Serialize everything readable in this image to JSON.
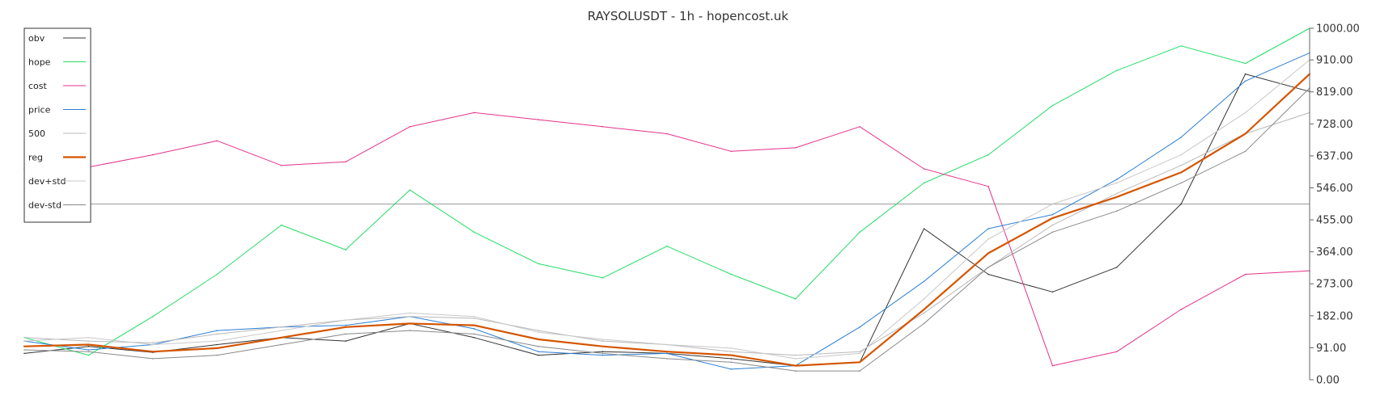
{
  "chart_data": {
    "type": "line",
    "title": "RAYSOLUSDT - 1h - hopencost.uk",
    "xlabel": "",
    "ylabel": "",
    "ylim": [
      0,
      1000
    ],
    "y_ticks": [
      "1000.00",
      "910.00",
      "819.00",
      "728.00",
      "637.00",
      "546.00",
      "455.00",
      "364.00",
      "273.00",
      "182.00",
      "91.00",
      "0.00"
    ],
    "y_tick_values": [
      1000,
      910,
      819,
      728,
      637,
      546,
      455,
      364,
      273,
      182,
      91,
      0
    ],
    "grid": false,
    "legend_position": "top-left",
    "reference_line": 500,
    "x": [
      0,
      20,
      40,
      60,
      80,
      100,
      120,
      140,
      160,
      180,
      200,
      220,
      240,
      260,
      280,
      300,
      320,
      340,
      360,
      380,
      400
    ],
    "series": [
      {
        "name": "obv",
        "color": "#333333",
        "width": 1,
        "values": [
          75,
          95,
          78,
          100,
          120,
          110,
          160,
          120,
          70,
          80,
          75,
          60,
          40,
          50,
          430,
          300,
          250,
          320,
          500,
          870,
          820
        ]
      },
      {
        "name": "hope",
        "color": "#22dd66",
        "width": 1,
        "values": [
          120,
          70,
          180,
          300,
          440,
          370,
          540,
          420,
          330,
          290,
          380,
          300,
          230,
          420,
          560,
          640,
          780,
          880,
          950,
          900,
          1000
        ]
      },
      {
        "name": "cost",
        "color": "#e3318a",
        "width": 1,
        "values": [
          600,
          605,
          640,
          680,
          610,
          620,
          720,
          760,
          740,
          720,
          700,
          650,
          660,
          720,
          600,
          550,
          40,
          80,
          200,
          300,
          310
        ]
      },
      {
        "name": "price",
        "color": "#2b7fd6",
        "width": 1,
        "values": [
          110,
          85,
          100,
          140,
          150,
          155,
          180,
          145,
          80,
          70,
          75,
          30,
          40,
          150,
          280,
          430,
          470,
          570,
          690,
          850,
          930
        ]
      },
      {
        "name": "500",
        "color": "#b8b8b8",
        "width": 1,
        "values": [
          120,
          110,
          105,
          130,
          150,
          170,
          180,
          175,
          140,
          110,
          100,
          80,
          70,
          80,
          190,
          320,
          440,
          530,
          610,
          700,
          760
        ]
      },
      {
        "name": "reg",
        "color": "#d45500",
        "width": 2.2,
        "values": [
          95,
          100,
          80,
          90,
          120,
          150,
          160,
          155,
          115,
          95,
          80,
          70,
          40,
          50,
          200,
          360,
          460,
          520,
          590,
          700,
          870
        ]
      },
      {
        "name": "dev+std",
        "color": "#c8c8c8",
        "width": 1,
        "values": [
          110,
          120,
          100,
          110,
          140,
          170,
          190,
          180,
          135,
          115,
          100,
          90,
          60,
          75,
          230,
          400,
          500,
          560,
          640,
          760,
          910
        ]
      },
      {
        "name": "dev-std",
        "color": "#888888",
        "width": 1,
        "values": [
          85,
          80,
          60,
          70,
          100,
          130,
          140,
          130,
          95,
          75,
          60,
          50,
          25,
          25,
          160,
          320,
          420,
          480,
          560,
          650,
          830
        ]
      }
    ]
  }
}
